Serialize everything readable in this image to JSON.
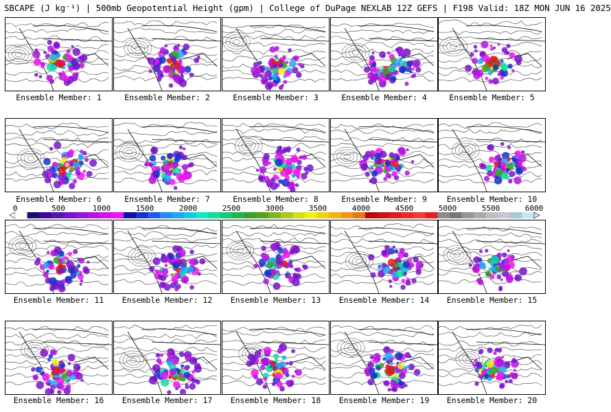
{
  "header": {
    "title": "SBCAPE (J kg⁻¹) | 500mb Geopotential Height (gpm) | College of DuPage NEXLAB 12Z GEFS | F198 Valid: 18Z MON JUN 16 2025"
  },
  "caption_prefix": "Ensemble Member: ",
  "members": [
    {
      "id": 1,
      "label": "Ensemble Member: 1"
    },
    {
      "id": 2,
      "label": "Ensemble Member: 2"
    },
    {
      "id": 3,
      "label": "Ensemble Member: 3"
    },
    {
      "id": 4,
      "label": "Ensemble Member: 4"
    },
    {
      "id": 5,
      "label": "Ensemble Member: 5"
    },
    {
      "id": 6,
      "label": "Ensemble Member: 6"
    },
    {
      "id": 7,
      "label": "Ensemble Member: 7"
    },
    {
      "id": 8,
      "label": "Ensemble Member: 8"
    },
    {
      "id": 9,
      "label": "Ensemble Member: 9"
    },
    {
      "id": 10,
      "label": "Ensemble Member: 10"
    },
    {
      "id": 11,
      "label": "Ensemble Member: 11"
    },
    {
      "id": 12,
      "label": "Ensemble Member: 12"
    },
    {
      "id": 13,
      "label": "Ensemble Member: 13"
    },
    {
      "id": 14,
      "label": "Ensemble Member: 14"
    },
    {
      "id": 15,
      "label": "Ensemble Member: 15"
    },
    {
      "id": 16,
      "label": "Ensemble Member: 16"
    },
    {
      "id": 17,
      "label": "Ensemble Member: 17"
    },
    {
      "id": 18,
      "label": "Ensemble Member: 18"
    },
    {
      "id": 19,
      "label": "Ensemble Member: 19"
    },
    {
      "id": 20,
      "label": "Ensemble Member: 20"
    }
  ],
  "colorbar": {
    "min": 0,
    "max": 6000,
    "labels": [
      "0",
      "500",
      "1000",
      "1500",
      "2000",
      "2500",
      "3000",
      "3500",
      "4000",
      "4500",
      "5000",
      "5500",
      "6000"
    ],
    "colors": [
      "#ffffff",
      "#1e0a6e",
      "#3c0b96",
      "#5a14b4",
      "#7814c8",
      "#9614d2",
      "#b414dc",
      "#d214e6",
      "#f014f0",
      "#0a14a0",
      "#1432c8",
      "#1e5af0",
      "#2888f8",
      "#1eaaf0",
      "#14c8e6",
      "#14e6c8",
      "#14dca0",
      "#14c878",
      "#1eb450",
      "#3ca028",
      "#5aa01e",
      "#82b41e",
      "#aac81e",
      "#d2dc1e",
      "#f0f014",
      "#f0d214",
      "#f0b414",
      "#f09614",
      "#e67814",
      "#b40a0a",
      "#c81414",
      "#dc1e1e",
      "#f02828",
      "#f03c3c",
      "#e61e1e",
      "#8c8c8c",
      "#787878",
      "#969696",
      "#aaaaaa",
      "#bebebe",
      "#c8c8d2",
      "#aac8d2",
      "#c8e6f0"
    ]
  }
}
